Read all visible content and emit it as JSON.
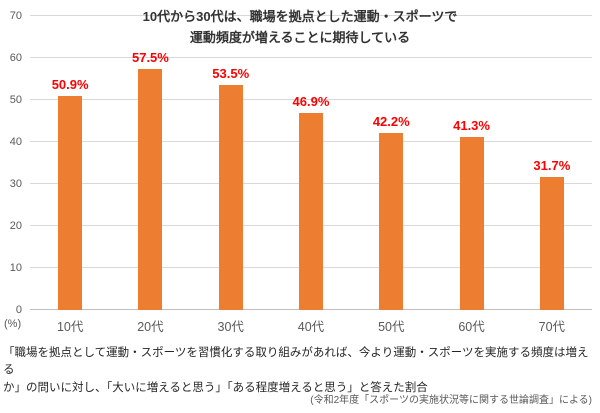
{
  "chart_data": {
    "type": "bar",
    "title_lines": [
      "10代から30代は、職場を拠点とした運動・スポーツで",
      "運動頻度が増えることに期待している"
    ],
    "categories": [
      "10代",
      "20代",
      "30代",
      "40代",
      "50代",
      "60代",
      "70代"
    ],
    "values": [
      50.9,
      57.5,
      53.5,
      46.9,
      42.2,
      41.3,
      31.7
    ],
    "labels": [
      "50.9%",
      "57.5%",
      "53.5%",
      "46.9%",
      "42.2%",
      "41.3%",
      "31.7%"
    ],
    "unit_label": "(%)",
    "ylim": [
      0,
      70
    ],
    "ytick_step": 10,
    "grid": true,
    "legend": "none",
    "bar_color": "#ED7D31",
    "label_color": "#FF0000"
  },
  "footnote_lines": [
    "「職場を拠点として運動・スポーツを習慣化する取り組みがあれば、今より運動・スポーツを実施する頻度は増える",
    "か」の問いに対し、「大いに増えると思う」「ある程度増えると思う」と答えた割合"
  ],
  "source": "(令和2年度「スポーツの実施状況等に関する世論調査」による)"
}
